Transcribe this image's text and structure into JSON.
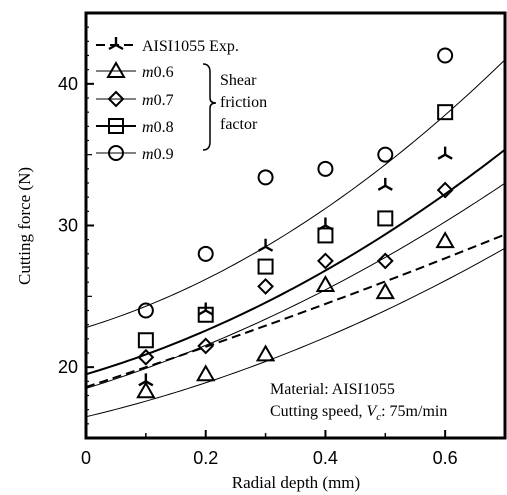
{
  "chart_data": {
    "type": "scatter",
    "xlabel": "Radial depth (mm)",
    "ylabel": "Cutting force (N)",
    "xlim": [
      0,
      0.7
    ],
    "ylim": [
      15,
      45
    ],
    "xticks": [
      0,
      0.2,
      0.4,
      0.6
    ],
    "xtick_labels": [
      "0",
      "0.2",
      "0.4",
      "0.6"
    ],
    "yticks": [
      20,
      30,
      40
    ],
    "ytick_labels": [
      "20",
      "30",
      "40"
    ],
    "grid": false,
    "legend_position": "top-left",
    "legend_group_label": [
      "Shear",
      "friction",
      "factor"
    ],
    "annotation_lines": [
      "Material: AISI1055"
    ],
    "annotation_speed": {
      "prefix": "Cutting speed, ",
      "symbol": "V",
      "subscript": "c",
      "suffix": ": 75m/min"
    },
    "series": [
      {
        "name": "AISI1055 Exp.",
        "marker": "tri-cross",
        "line": "dashed",
        "x": [
          0.1,
          0.2,
          0.3,
          0.4,
          0.5,
          0.6
        ],
        "y": [
          19.0,
          24.0,
          28.5,
          30.0,
          32.8,
          35.0
        ],
        "fit": [
          18.6,
          13.7,
          2.4
        ]
      },
      {
        "name": "m0.6",
        "marker": "triangle",
        "line": "thin",
        "x": [
          0.1,
          0.2,
          0.3,
          0.4,
          0.5,
          0.6
        ],
        "y": [
          18.3,
          19.5,
          20.9,
          25.8,
          25.3,
          28.9
        ],
        "fit": [
          16.5,
          10.0,
          10.0
        ]
      },
      {
        "name": "m0.7",
        "marker": "diamond",
        "line": "thin",
        "x": [
          0.1,
          0.2,
          0.3,
          0.4,
          0.5,
          0.6
        ],
        "y": [
          20.7,
          21.5,
          25.7,
          27.5,
          27.5,
          32.5
        ],
        "fit": [
          18.5,
          13.0,
          11.0
        ]
      },
      {
        "name": "m0.8",
        "marker": "square",
        "line": "thick",
        "x": [
          0.1,
          0.2,
          0.3,
          0.4,
          0.5,
          0.6
        ],
        "y": [
          21.9,
          23.7,
          27.1,
          29.3,
          30.5,
          38.0
        ],
        "fit": [
          19.5,
          12.5,
          14.5
        ]
      },
      {
        "name": "m0.9",
        "marker": "circle",
        "line": "thin",
        "x": [
          0.1,
          0.2,
          0.3,
          0.4,
          0.5,
          0.6
        ],
        "y": [
          24.0,
          28.0,
          33.4,
          34.0,
          35.0,
          42.0
        ],
        "fit": [
          22.8,
          13.0,
          20.0
        ]
      }
    ]
  }
}
